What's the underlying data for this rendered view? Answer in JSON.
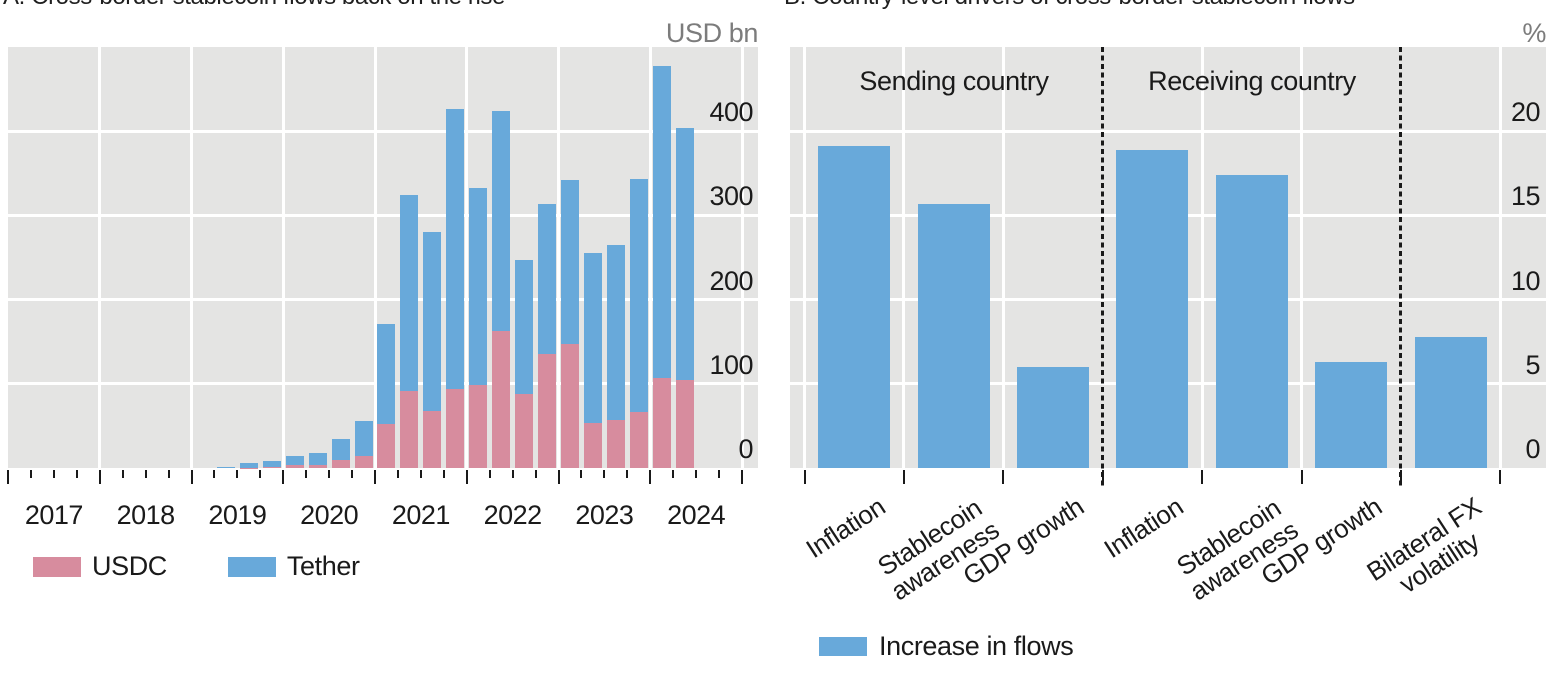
{
  "panels": {
    "a": {
      "title": "A. Cross-border stablecoin flows back on the rise",
      "unit": "USD bn",
      "legend": [
        {
          "label": "USDC",
          "color": "#d78c9e"
        },
        {
          "label": "Tether",
          "color": "#68a9da"
        }
      ]
    },
    "b": {
      "title": "B. Country-level drivers of cross-border stablecoin flows",
      "unit": "%",
      "group_headers": [
        "Sending country",
        "Receiving country"
      ],
      "legend": [
        {
          "label": "Increase in flows",
          "color": "#68a9da"
        }
      ]
    }
  },
  "colors": {
    "tether_blue": "#68a9da",
    "usdc_pink": "#d78c9e",
    "plot_background": "#e4e4e3",
    "gridline": "#ffffff",
    "text": "#1a1a1a",
    "unit_text": "#7c7c7c"
  },
  "chart_data": [
    {
      "type": "bar",
      "stacked": true,
      "title": "A. Cross-border stablecoin flows back on the rise",
      "ylabel": "USD bn",
      "ylim": [
        0,
        500
      ],
      "yticks": [
        0,
        100,
        200,
        300,
        400
      ],
      "grid": true,
      "legend_position": "bottom-left",
      "x_unit": "quarter",
      "year_labels": [
        "2017",
        "2018",
        "2019",
        "2020",
        "2021",
        "2022",
        "2023",
        "2024"
      ],
      "quarters": [
        "2017Q1",
        "2017Q2",
        "2017Q3",
        "2017Q4",
        "2018Q1",
        "2018Q2",
        "2018Q3",
        "2018Q4",
        "2019Q1",
        "2019Q2",
        "2019Q3",
        "2019Q4",
        "2020Q1",
        "2020Q2",
        "2020Q3",
        "2020Q4",
        "2021Q1",
        "2021Q2",
        "2021Q3",
        "2021Q4",
        "2022Q1",
        "2022Q2",
        "2022Q3",
        "2022Q4",
        "2023Q1",
        "2023Q2",
        "2023Q3",
        "2023Q4",
        "2024Q1",
        "2024Q2",
        "2024Q3",
        "2024Q4"
      ],
      "series": [
        {
          "name": "USDC",
          "color": "#d78c9e",
          "values": [
            0,
            0,
            0,
            0,
            0,
            0,
            0,
            0,
            0,
            0,
            0.5,
            1,
            3,
            4,
            9,
            14,
            52,
            92,
            68,
            94,
            98,
            163,
            88,
            135,
            147,
            53,
            57,
            67,
            107,
            104,
            0,
            0
          ]
        },
        {
          "name": "Tether",
          "color": "#68a9da",
          "values": [
            0,
            0,
            0,
            0,
            0,
            0,
            0,
            0,
            0,
            1,
            5,
            7,
            11,
            14,
            25,
            42,
            119,
            232,
            212,
            332,
            234,
            261,
            159,
            179,
            195,
            202,
            208,
            276,
            371,
            300,
            0,
            0
          ]
        }
      ]
    },
    {
      "type": "bar",
      "title": "B. Country-level drivers of cross-border stablecoin flows",
      "ylabel": "%",
      "ylim": [
        0,
        25
      ],
      "yticks": [
        0,
        5,
        10,
        15,
        20
      ],
      "grid": true,
      "legend_position": "bottom-center",
      "categories": [
        "Inflation",
        "Stablecoin\nawareness",
        "GDP growth",
        "Inflation",
        "Stablecoin\nawareness",
        "GDP growth",
        "Bilateral FX\nvolatility"
      ],
      "values": [
        19.1,
        15.7,
        6.0,
        18.9,
        17.4,
        6.3,
        7.8
      ],
      "groups": [
        {
          "label": "Sending country",
          "cells": [
            0,
            1,
            2
          ]
        },
        {
          "label": "Receiving country",
          "cells": [
            3,
            4,
            5
          ]
        }
      ],
      "dashed_separators_before_cell": [
        3,
        6
      ],
      "legend": [
        "Increase in flows"
      ]
    }
  ]
}
